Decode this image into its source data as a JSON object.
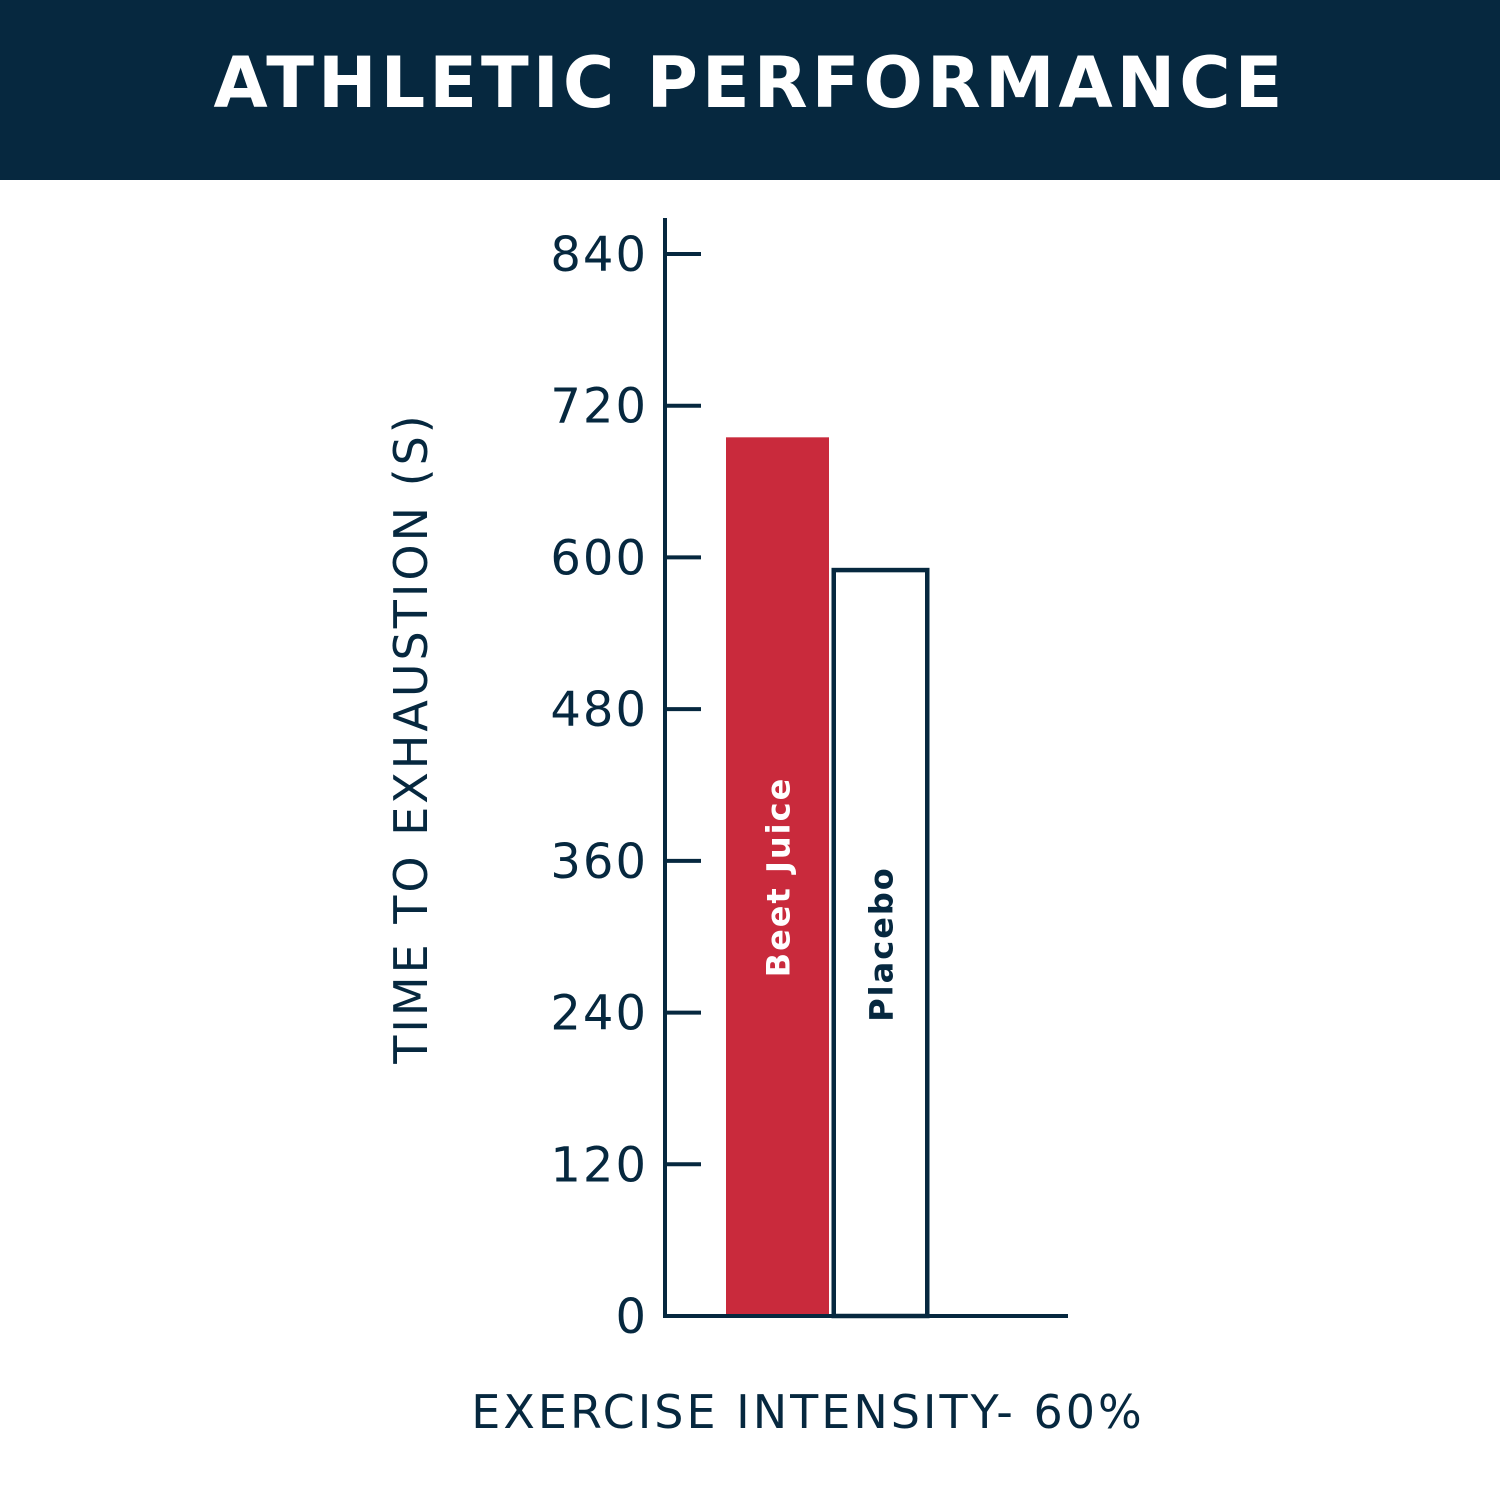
{
  "colors": {
    "navy": "#06283f",
    "red": "#c92a3c",
    "white": "#ffffff"
  },
  "header": {
    "title": "ATHLETIC PERFORMANCE"
  },
  "chart_data": {
    "type": "bar",
    "title": "ATHLETIC PERFORMANCE",
    "ylabel": "TIME TO EXHAUSTION (S)",
    "xlabel": "EXERCISE INTENSITY- 60%",
    "ylim": [
      0,
      840
    ],
    "yticks": [
      0,
      120,
      240,
      360,
      480,
      600,
      720,
      840
    ],
    "grid": false,
    "categories": [
      "Beet Juice",
      "Placebo"
    ],
    "values": [
      695,
      590
    ],
    "bar_styles": [
      "filled-red",
      "outline"
    ]
  }
}
